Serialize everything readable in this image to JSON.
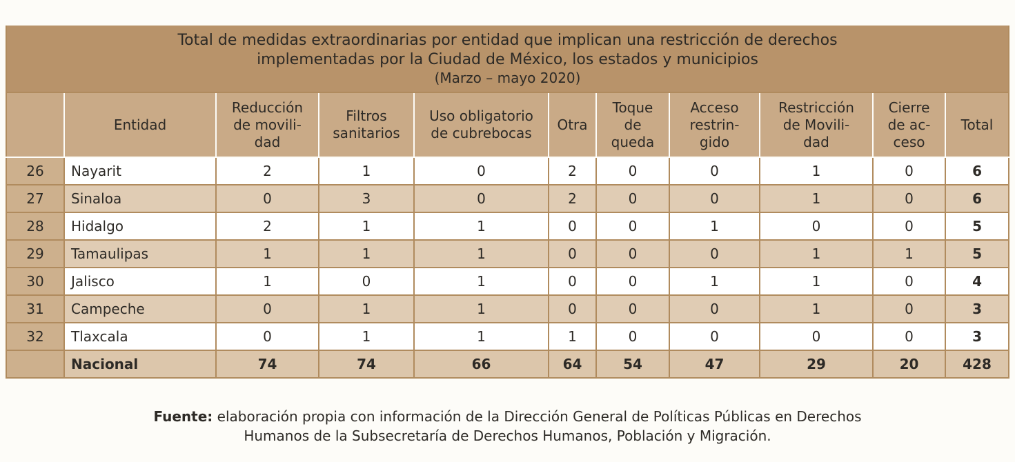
{
  "title": {
    "line1": "Total de medidas extraordinarias por entidad que implican una restricción de derechos",
    "line2": "implementadas por la Ciudad de México, los estados y municipios",
    "period": "(Marzo – mayo 2020)"
  },
  "headers": {
    "number": "",
    "entidad": "Entidad",
    "reduccion": "Reducción de movilidad",
    "filtros": "Filtros sanitarios",
    "cubrebocas": "Uso obligatorio de cubrebocas",
    "otra": "Otra",
    "toque": "Toque de queda",
    "acceso": "Acceso restringido",
    "restriccion": "Restricción de Movilidad",
    "cierre": "Cierre de acceso",
    "total": "Total"
  },
  "rows": [
    {
      "n": "26",
      "entidad": "Nayarit",
      "v": [
        "2",
        "1",
        "0",
        "2",
        "0",
        "0",
        "1",
        "0"
      ],
      "total": "6"
    },
    {
      "n": "27",
      "entidad": "Sinaloa",
      "v": [
        "0",
        "3",
        "0",
        "2",
        "0",
        "0",
        "1",
        "0"
      ],
      "total": "6"
    },
    {
      "n": "28",
      "entidad": "Hidalgo",
      "v": [
        "2",
        "1",
        "1",
        "0",
        "0",
        "1",
        "0",
        "0"
      ],
      "total": "5"
    },
    {
      "n": "29",
      "entidad": "Tamaulipas",
      "v": [
        "1",
        "1",
        "1",
        "0",
        "0",
        "0",
        "1",
        "1"
      ],
      "total": "5"
    },
    {
      "n": "30",
      "entidad": "Jalisco",
      "v": [
        "1",
        "0",
        "1",
        "0",
        "0",
        "1",
        "1",
        "0"
      ],
      "total": "4"
    },
    {
      "n": "31",
      "entidad": "Campeche",
      "v": [
        "0",
        "1",
        "1",
        "0",
        "0",
        "0",
        "1",
        "0"
      ],
      "total": "3"
    },
    {
      "n": "32",
      "entidad": "Tlaxcala",
      "v": [
        "0",
        "1",
        "1",
        "1",
        "0",
        "0",
        "0",
        "0"
      ],
      "total": "3"
    }
  ],
  "totals": {
    "label": "Nacional",
    "v": [
      "74",
      "74",
      "66",
      "64",
      "54",
      "47",
      "29",
      "20"
    ],
    "total": "428"
  },
  "source": {
    "label": "Fuente:",
    "line1": "elaboración propia con información de la Dirección General de Políticas Públicas en Derechos",
    "line2": "Humanos de la Subsecretaría de Derechos Humanos, Población y Migración."
  }
}
